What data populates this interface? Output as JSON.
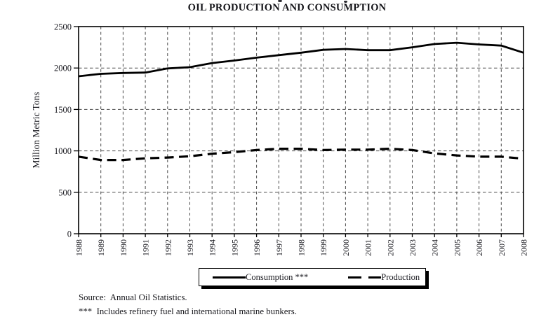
{
  "title": "OIL PRODUCTION AND CONSUMPTION",
  "y_axis_label": "Million Metric Tons",
  "legend": {
    "consumption": "Consumption ***",
    "production": "Production"
  },
  "footer": {
    "source": "Source:  Annual Oil Statistics.",
    "note": "***  Includes refinery fuel and international marine bunkers."
  },
  "colors": {
    "line": "#000000",
    "grid": "#4a4a4a",
    "text": "#1a1a20",
    "background": "#ffffff"
  },
  "chart_data": {
    "type": "line",
    "title": "OIL PRODUCTION AND CONSUMPTION",
    "ylabel": "Million Metric Tons",
    "xlabel": "",
    "ylim": [
      0,
      2500
    ],
    "yticks": [
      0,
      500,
      1000,
      1500,
      2000,
      2500
    ],
    "grid": "dashed, both axes",
    "legend_position": "bottom",
    "x": [
      1988,
      1989,
      1990,
      1991,
      1992,
      1993,
      1994,
      1995,
      1996,
      1997,
      1998,
      1999,
      2000,
      2001,
      2002,
      2003,
      2004,
      2005,
      2006,
      2007,
      2008
    ],
    "series": [
      {
        "name": "Consumption ***",
        "line_style": "solid",
        "values": [
          1900,
          1930,
          1940,
          1945,
          1995,
          2010,
          2060,
          2090,
          2125,
          2155,
          2185,
          2220,
          2230,
          2215,
          2215,
          2250,
          2290,
          2305,
          2285,
          2270,
          2185
        ]
      },
      {
        "name": "Production",
        "line_style": "dashed",
        "values": [
          930,
          890,
          890,
          910,
          920,
          935,
          965,
          985,
          1010,
          1025,
          1025,
          1010,
          1015,
          1015,
          1025,
          1010,
          970,
          945,
          930,
          930,
          905
        ]
      }
    ]
  }
}
